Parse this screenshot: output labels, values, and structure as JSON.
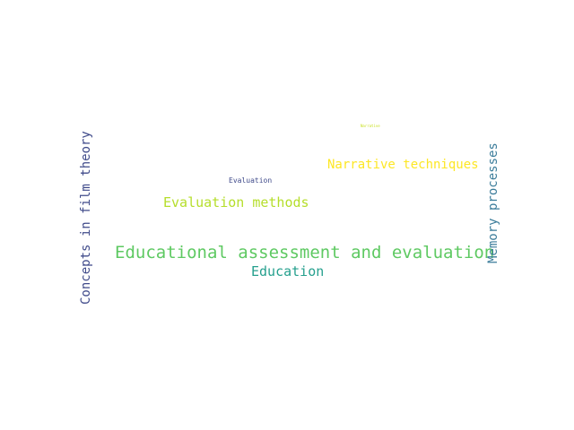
{
  "words": [
    {
      "id": "educational-assessment",
      "text": "Educational assessment and evaluation",
      "color": "#5ec962"
    },
    {
      "id": "evaluation-methods",
      "text": "Evaluation methods",
      "color": "#b5de2b"
    },
    {
      "id": "narrative-techniques",
      "text": "Narrative techniques",
      "color": "#fde725"
    },
    {
      "id": "education",
      "text": "Education",
      "color": "#26a08e"
    },
    {
      "id": "concepts-film-theory",
      "text": "Concepts in film theory",
      "color": "#3f4a8a"
    },
    {
      "id": "memory-processes",
      "text": "Memory processes",
      "color": "#3b7c9a"
    },
    {
      "id": "evaluation-small",
      "text": "Evaluation",
      "color": "#3f4a8a"
    },
    {
      "id": "tiny-word",
      "text": "Narrative",
      "color": "#c8e020"
    }
  ]
}
